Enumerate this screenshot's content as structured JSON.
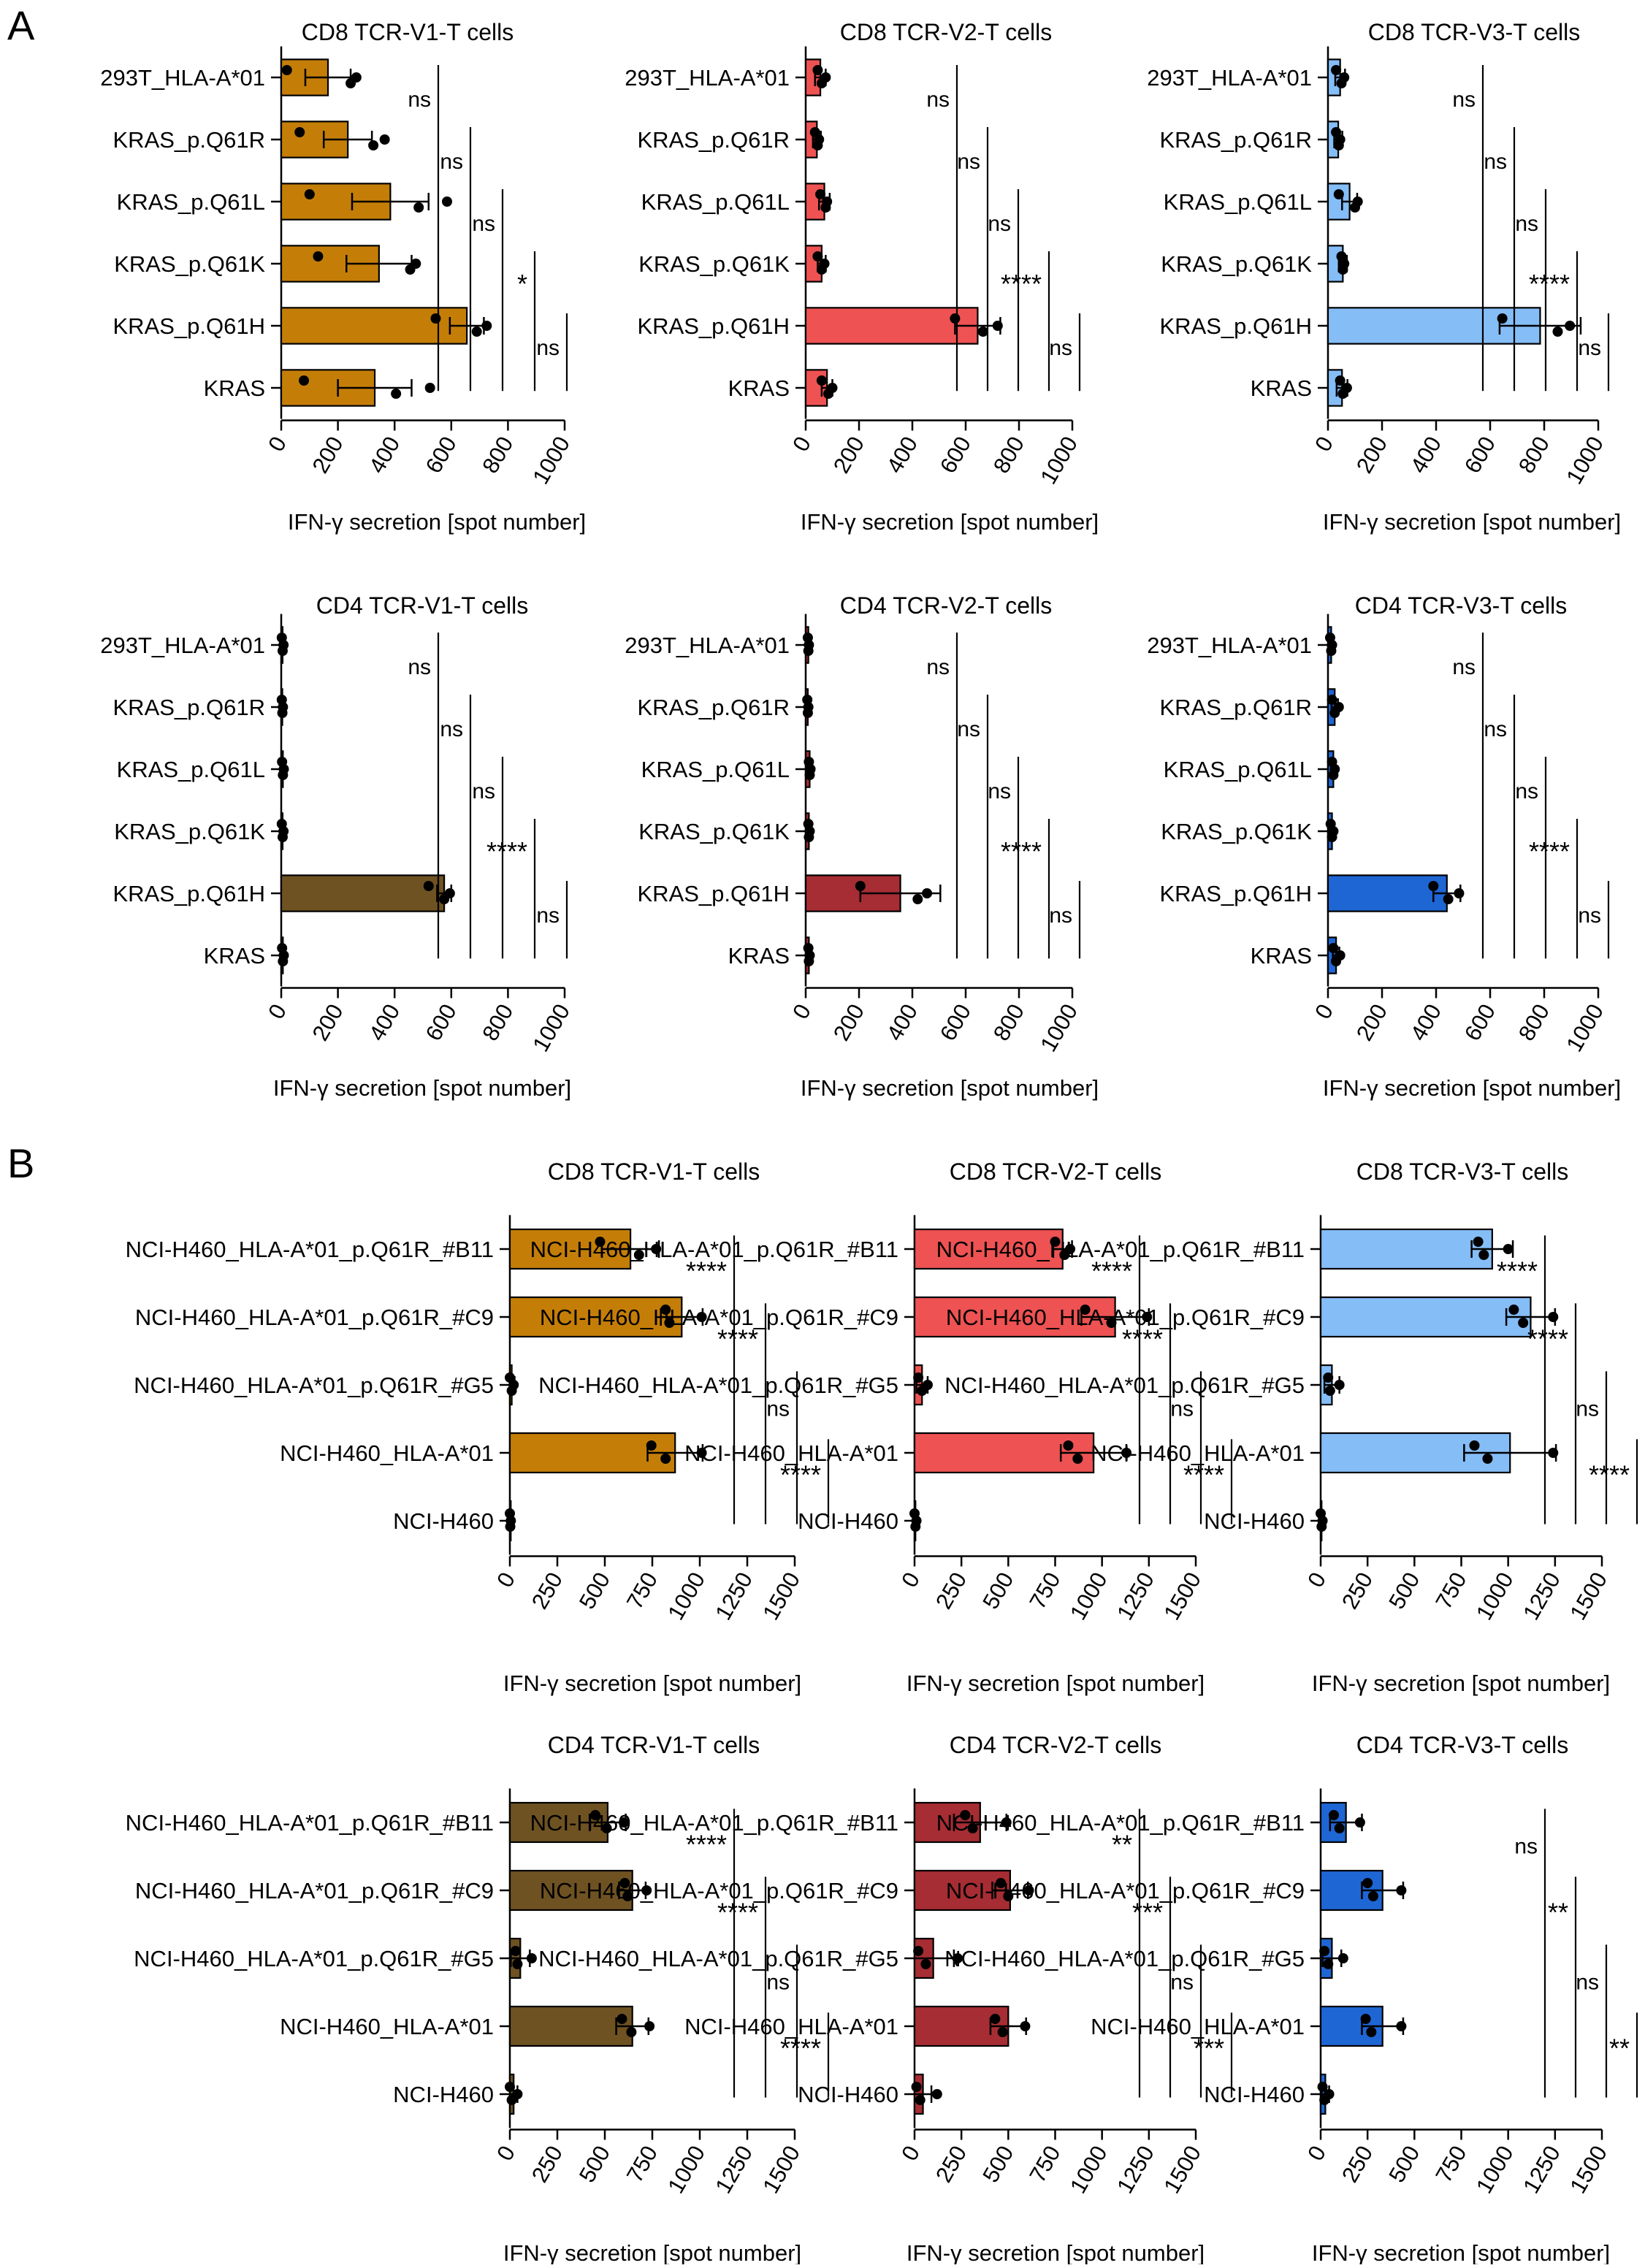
{
  "panel_labels": [
    "A",
    "B"
  ],
  "colors": {
    "cd8_v1": "#C47E08",
    "cd8_v2": "#EE5252",
    "cd8_v3": "#85BDF7",
    "cd4_v1": "#6E5222",
    "cd4_v2": "#A62D33",
    "cd4_v3": "#1E66D4"
  },
  "chart_data": [
    {
      "id": "A-cd8-v1",
      "type": "bar",
      "orientation": "horizontal",
      "title": "CD8 TCR-V1-T cells",
      "xlabel": "IFN-γ secretion [spot number]",
      "xlim": [
        0,
        1000
      ],
      "xticks": [
        0,
        200,
        400,
        600,
        800,
        1000
      ],
      "categories": [
        "293T_HLA-A*01",
        "KRAS_p.Q61R",
        "KRAS_p.Q61L",
        "KRAS_p.Q61K",
        "KRAS_p.Q61H",
        "KRAS"
      ],
      "values": [
        165,
        235,
        385,
        345,
        655,
        330
      ],
      "errors": [
        80,
        85,
        135,
        115,
        60,
        130
      ],
      "points": [
        [
          20,
          245,
          265
        ],
        [
          65,
          325,
          365
        ],
        [
          100,
          485,
          585
        ],
        [
          130,
          455,
          475
        ],
        [
          545,
          690,
          725
        ],
        [
          80,
          405,
          525
        ]
      ],
      "significance": [
        "ns",
        "ns",
        "ns",
        "*",
        "ns"
      ],
      "color_key": "cd8_v1"
    },
    {
      "id": "A-cd8-v2",
      "type": "bar",
      "orientation": "horizontal",
      "title": "CD8 TCR-V2-T cells",
      "xlabel": "IFN-γ secretion [spot number]",
      "xlim": [
        0,
        1000
      ],
      "xticks": [
        0,
        200,
        400,
        600,
        800,
        1000
      ],
      "categories": [
        "293T_HLA-A*01",
        "KRAS_p.Q61R",
        "KRAS_p.Q61L",
        "KRAS_p.Q61K",
        "KRAS_p.Q61H",
        "KRAS"
      ],
      "values": [
        55,
        42,
        70,
        60,
        645,
        80
      ],
      "errors": [
        20,
        15,
        20,
        15,
        85,
        20
      ],
      "points": [
        [
          45,
          60,
          75
        ],
        [
          35,
          45,
          50
        ],
        [
          55,
          75,
          80
        ],
        [
          45,
          60,
          70
        ],
        [
          560,
          665,
          720
        ],
        [
          60,
          85,
          100
        ]
      ],
      "significance": [
        "ns",
        "ns",
        "ns",
        "****",
        "ns"
      ],
      "color_key": "cd8_v2"
    },
    {
      "id": "A-cd8-v3",
      "type": "bar",
      "orientation": "horizontal",
      "title": "CD8 TCR-V3-T cells",
      "xlabel": "IFN-γ secretion [spot number]",
      "xlim": [
        0,
        1000
      ],
      "xticks": [
        0,
        200,
        400,
        600,
        800,
        1000
      ],
      "categories": [
        "293T_HLA-A*01",
        "KRAS_p.Q61R",
        "KRAS_p.Q61L",
        "KRAS_p.Q61K",
        "KRAS_p.Q61H",
        "KRAS"
      ],
      "values": [
        45,
        38,
        80,
        55,
        785,
        52
      ],
      "errors": [
        18,
        15,
        28,
        15,
        150,
        20
      ],
      "points": [
        [
          30,
          50,
          60
        ],
        [
          30,
          40,
          45
        ],
        [
          40,
          100,
          110
        ],
        [
          50,
          55,
          60
        ],
        [
          645,
          850,
          895
        ],
        [
          45,
          55,
          70
        ]
      ],
      "significance": [
        "ns",
        "ns",
        "ns",
        "****",
        "ns"
      ],
      "color_key": "cd8_v3"
    },
    {
      "id": "A-cd4-v1",
      "type": "bar",
      "orientation": "horizontal",
      "title": "CD4 TCR-V1-T cells",
      "xlabel": "IFN-γ secretion [spot number]",
      "xlim": [
        0,
        1000
      ],
      "xticks": [
        0,
        200,
        400,
        600,
        800,
        1000
      ],
      "categories": [
        "293T_HLA-A*01",
        "KRAS_p.Q61R",
        "KRAS_p.Q61L",
        "KRAS_p.Q61K",
        "KRAS_p.Q61H",
        "KRAS"
      ],
      "values": [
        5,
        4,
        6,
        5,
        575,
        6
      ],
      "errors": [
        3,
        3,
        3,
        3,
        25,
        3
      ],
      "points": [
        [
          2,
          5,
          8
        ],
        [
          2,
          4,
          6
        ],
        [
          3,
          6,
          9
        ],
        [
          2,
          5,
          8
        ],
        [
          520,
          575,
          595
        ],
        [
          3,
          6,
          9
        ]
      ],
      "significance": [
        "ns",
        "ns",
        "ns",
        "****",
        "ns"
      ],
      "color_key": "cd4_v1"
    },
    {
      "id": "A-cd4-v2",
      "type": "bar",
      "orientation": "horizontal",
      "title": "CD4 TCR-V2-T cells",
      "xlabel": "IFN-γ secretion [spot number]",
      "xlim": [
        0,
        1000
      ],
      "xticks": [
        0,
        200,
        400,
        600,
        800,
        1000
      ],
      "categories": [
        "293T_HLA-A*01",
        "KRAS_p.Q61R",
        "KRAS_p.Q61L",
        "KRAS_p.Q61K",
        "KRAS_p.Q61H",
        "KRAS"
      ],
      "values": [
        10,
        8,
        15,
        12,
        355,
        12
      ],
      "errors": [
        5,
        5,
        5,
        5,
        150,
        5
      ],
      "points": [
        [
          8,
          10,
          12
        ],
        [
          6,
          8,
          10
        ],
        [
          12,
          15,
          18
        ],
        [
          10,
          12,
          15
        ],
        [
          205,
          420,
          455
        ],
        [
          10,
          12,
          15
        ]
      ],
      "significance": [
        "ns",
        "ns",
        "ns",
        "****",
        "ns"
      ],
      "color_key": "cd4_v2"
    },
    {
      "id": "A-cd4-v3",
      "type": "bar",
      "orientation": "horizontal",
      "title": "CD4 TCR-V3-T cells",
      "xlabel": "IFN-γ secretion [spot number]",
      "xlim": [
        0,
        1000
      ],
      "xticks": [
        0,
        200,
        400,
        600,
        800,
        1000
      ],
      "categories": [
        "293T_HLA-A*01",
        "KRAS_p.Q61R",
        "KRAS_p.Q61L",
        "KRAS_p.Q61K",
        "KRAS_p.Q61H",
        "KRAS"
      ],
      "values": [
        12,
        25,
        20,
        15,
        440,
        30
      ],
      "errors": [
        5,
        12,
        8,
        5,
        50,
        12
      ],
      "points": [
        [
          8,
          12,
          15
        ],
        [
          15,
          25,
          40
        ],
        [
          15,
          20,
          25
        ],
        [
          10,
          15,
          20
        ],
        [
          390,
          445,
          485
        ],
        [
          20,
          30,
          45
        ]
      ],
      "significance": [
        "ns",
        "ns",
        "ns",
        "****",
        "ns"
      ],
      "color_key": "cd4_v3"
    },
    {
      "id": "B-cd8-v1",
      "type": "bar",
      "orientation": "horizontal",
      "title": "CD8 TCR-V1-T cells",
      "xlabel": "IFN-γ secretion [spot number]",
      "xlim": [
        0,
        1500
      ],
      "xticks": [
        0,
        250,
        500,
        750,
        1000,
        1250,
        1500
      ],
      "categories": [
        "NCI-H460_HLA-A*01_p.Q61R_#B11",
        "NCI-H460_HLA-A*01_p.Q61R_#C9",
        "NCI-H460_HLA-A*01_p.Q61R_#G5",
        "NCI-H460_HLA-A*01",
        "NCI-H460"
      ],
      "values": [
        635,
        905,
        10,
        870,
        5
      ],
      "errors": [
        150,
        110,
        15,
        145,
        5
      ],
      "points": [
        [
          475,
          680,
          770
        ],
        [
          820,
          840,
          1010
        ],
        [
          0,
          10,
          20
        ],
        [
          745,
          820,
          1010
        ],
        [
          0,
          2,
          5
        ]
      ],
      "significance": [
        "****",
        "****",
        "ns",
        "****"
      ],
      "color_key": "cd8_v1"
    },
    {
      "id": "B-cd8-v2",
      "type": "bar",
      "orientation": "horizontal",
      "title": "CD8 TCR-V2-T cells",
      "xlabel": "IFN-γ secretion [spot number]",
      "xlim": [
        0,
        1500
      ],
      "xticks": [
        0,
        250,
        500,
        750,
        1000,
        1250,
        1500
      ],
      "categories": [
        "NCI-H460_HLA-A*01_p.Q61R_#B11",
        "NCI-H460_HLA-A*01_p.Q61R_#C9",
        "NCI-H460_HLA-A*01_p.Q61R_#G5",
        "NCI-H460_HLA-A*01",
        "NCI-H460"
      ],
      "values": [
        790,
        1070,
        40,
        955,
        5
      ],
      "errors": [
        50,
        180,
        30,
        175,
        10
      ],
      "points": [
        [
          750,
          800,
          830
        ],
        [
          910,
          1050,
          1240
        ],
        [
          20,
          40,
          70
        ],
        [
          820,
          870,
          1130
        ],
        [
          0,
          5,
          10
        ]
      ],
      "significance": [
        "****",
        "****",
        "ns",
        "****"
      ],
      "color_key": "cd8_v2"
    },
    {
      "id": "B-cd8-v3",
      "type": "bar",
      "orientation": "horizontal",
      "title": "CD8 TCR-V3-T cells",
      "xlabel": "IFN-γ secretion [spot number]",
      "xlim": [
        0,
        1500
      ],
      "xticks": [
        0,
        250,
        500,
        750,
        1000,
        1250,
        1500
      ],
      "categories": [
        "NCI-H460_HLA-A*01_p.Q61R_#B11",
        "NCI-H460_HLA-A*01_p.Q61R_#C9",
        "NCI-H460_HLA-A*01_p.Q61R_#G5",
        "NCI-H460_HLA-A*01",
        "NCI-H460"
      ],
      "values": [
        915,
        1120,
        60,
        1010,
        5
      ],
      "errors": [
        110,
        130,
        40,
        245,
        10
      ],
      "points": [
        [
          840,
          870,
          1000
        ],
        [
          1030,
          1080,
          1240
        ],
        [
          40,
          50,
          100
        ],
        [
          820,
          890,
          1240
        ],
        [
          0,
          5,
          10
        ]
      ],
      "significance": [
        "****",
        "****",
        "ns",
        "****"
      ],
      "color_key": "cd8_v3"
    },
    {
      "id": "B-cd4-v1",
      "type": "bar",
      "orientation": "horizontal",
      "title": "CD4 TCR-V1-T cells",
      "xlabel": "IFN-γ secretion [spot number]",
      "xlim": [
        0,
        1500
      ],
      "xticks": [
        0,
        250,
        500,
        750,
        1000,
        1250,
        1500
      ],
      "categories": [
        "NCI-H460_HLA-A*01_p.Q61R_#B11",
        "NCI-H460_HLA-A*01_p.Q61R_#C9",
        "NCI-H460_HLA-A*01_p.Q61R_#G5",
        "NCI-H460_HLA-A*01",
        "NCI-H460"
      ],
      "values": [
        515,
        645,
        55,
        645,
        20
      ],
      "errors": [
        95,
        70,
        50,
        85,
        20
      ],
      "points": [
        [
          450,
          510,
          600
        ],
        [
          605,
          620,
          720
        ],
        [
          30,
          40,
          115
        ],
        [
          590,
          640,
          735
        ],
        [
          0,
          10,
          40
        ]
      ],
      "significance": [
        "****",
        "****",
        "ns",
        "****"
      ],
      "color_key": "cd4_v1"
    },
    {
      "id": "B-cd4-v2",
      "type": "bar",
      "orientation": "horizontal",
      "title": "CD4 TCR-V2-T cells",
      "xlabel": "IFN-γ secretion [spot number]",
      "xlim": [
        0,
        1500
      ],
      "xticks": [
        0,
        250,
        500,
        750,
        1000,
        1250,
        1500
      ],
      "categories": [
        "NCI-H460_HLA-A*01_p.Q61R_#B11",
        "NCI-H460_HLA-A*01_p.Q61R_#C9",
        "NCI-H460_HLA-A*01_p.Q61R_#G5",
        "NCI-H460_HLA-A*01",
        "NCI-H460"
      ],
      "values": [
        350,
        510,
        100,
        500,
        45
      ],
      "errors": [
        140,
        95,
        110,
        95,
        45
      ],
      "points": [
        [
          270,
          310,
          490
        ],
        [
          460,
          500,
          610
        ],
        [
          20,
          60,
          230
        ],
        [
          430,
          470,
          590
        ],
        [
          10,
          30,
          120
        ]
      ],
      "significance": [
        "**",
        "***",
        "ns",
        "***"
      ],
      "color_key": "cd4_v2"
    },
    {
      "id": "B-cd4-v3",
      "type": "bar",
      "orientation": "horizontal",
      "title": "CD4 TCR-V3-T cells",
      "xlabel": "IFN-γ secretion [spot number]",
      "xlim": [
        0,
        1500
      ],
      "xticks": [
        0,
        250,
        500,
        750,
        1000,
        1250,
        1500
      ],
      "categories": [
        "NCI-H460_HLA-A*01_p.Q61R_#B11",
        "NCI-H460_HLA-A*01_p.Q61R_#C9",
        "NCI-H460_HLA-A*01_p.Q61R_#G5",
        "NCI-H460_HLA-A*01",
        "NCI-H460"
      ],
      "values": [
        135,
        330,
        60,
        330,
        25
      ],
      "errors": [
        85,
        110,
        50,
        110,
        20
      ],
      "points": [
        [
          70,
          100,
          210
        ],
        [
          250,
          280,
          430
        ],
        [
          20,
          40,
          120
        ],
        [
          240,
          270,
          430
        ],
        [
          10,
          20,
          45
        ]
      ],
      "significance": [
        "ns",
        "**",
        "ns",
        "**"
      ],
      "color_key": "cd4_v3"
    }
  ]
}
